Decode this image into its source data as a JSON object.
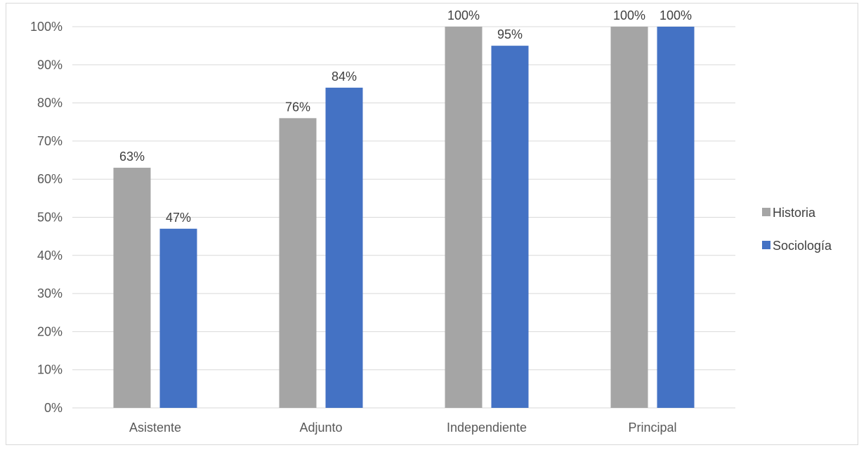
{
  "chart_data": {
    "type": "bar",
    "title": "",
    "xlabel": "",
    "ylabel": "",
    "ylim": [
      0,
      100
    ],
    "y_ticks": [
      0,
      10,
      20,
      30,
      40,
      50,
      60,
      70,
      80,
      90,
      100
    ],
    "y_tick_suffix": "%",
    "grid": true,
    "legend_position": "right",
    "categories": [
      "Asistente",
      "Adjunto",
      "Independiente",
      "Principal"
    ],
    "series": [
      {
        "name": "Historia",
        "color": "#a5a5a5",
        "values": [
          63,
          76,
          100,
          100
        ],
        "value_labels": [
          "63%",
          "76%",
          "100%",
          "100%"
        ]
      },
      {
        "name": "Sociología",
        "color": "#4472c4",
        "values": [
          47,
          84,
          95,
          100
        ],
        "value_labels": [
          "47%",
          "84%",
          "95%",
          "100%"
        ]
      }
    ]
  }
}
